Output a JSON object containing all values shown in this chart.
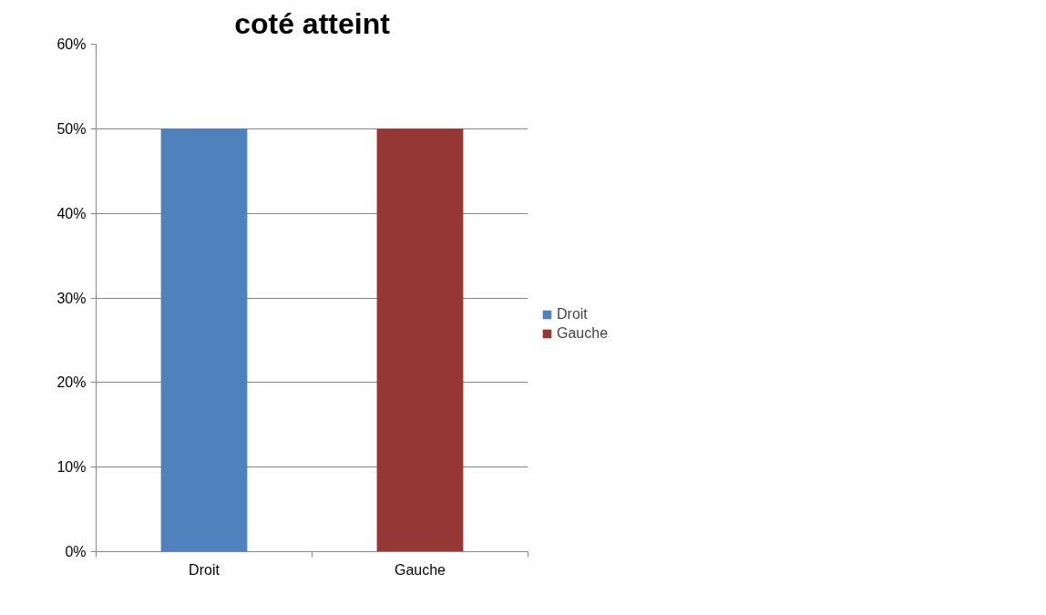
{
  "chart_data": {
    "type": "bar",
    "title": "coté atteint",
    "categories": [
      "Droit",
      "Gauche"
    ],
    "stacked": true,
    "series": [
      {
        "name": "Droit",
        "color": "#4f81bd",
        "values": [
          50,
          null
        ]
      },
      {
        "name": "Gauche",
        "color": "#953735",
        "values": [
          null,
          50
        ]
      }
    ],
    "ylim": [
      0,
      60
    ],
    "yticks": [
      {
        "value": 0,
        "label": "0%"
      },
      {
        "value": 10,
        "label": "10%"
      },
      {
        "value": 20,
        "label": "20%"
      },
      {
        "value": 30,
        "label": "30%"
      },
      {
        "value": 40,
        "label": "40%"
      },
      {
        "value": 50,
        "label": "50%"
      },
      {
        "value": 60,
        "label": "60%"
      }
    ],
    "grid": "y",
    "legend": "right"
  }
}
